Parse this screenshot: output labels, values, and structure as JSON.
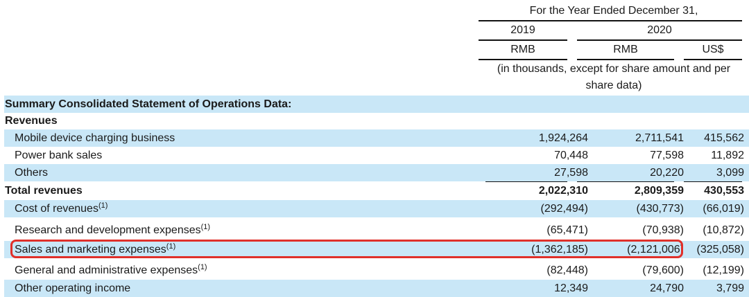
{
  "header": {
    "period": "For the Year Ended December 31,",
    "year_2019": "2019",
    "year_2020": "2020",
    "currency_2019": "RMB",
    "currency_2020": "RMB",
    "currency_usd": "US$",
    "units_line1": "(in thousands, except for share amount and per",
    "units_line2": "share data)"
  },
  "rows": [
    {
      "label": "Summary Consolidated Statement of Operations Data:",
      "sup": "",
      "v2019": "",
      "v2020": "",
      "vusd": ""
    },
    {
      "label": "Revenues",
      "sup": "",
      "v2019": "",
      "v2020": "",
      "vusd": ""
    },
    {
      "label": "Mobile device charging business",
      "sup": "",
      "v2019": "1,924,264",
      "v2020": "2,711,541",
      "vusd": "415,562"
    },
    {
      "label": "Power bank sales",
      "sup": "",
      "v2019": "70,448",
      "v2020": "77,598",
      "vusd": "11,892"
    },
    {
      "label": "Others",
      "sup": "",
      "v2019": "27,598",
      "v2020": "20,220",
      "vusd": "3,099"
    },
    {
      "label": "Total revenues",
      "sup": "",
      "v2019": "2,022,310",
      "v2020": "2,809,359",
      "vusd": "430,553"
    },
    {
      "label": "Cost of revenues",
      "sup": "(1)",
      "v2019": "(292,494)",
      "v2020": "(430,773)",
      "vusd": "(66,019)"
    },
    {
      "label": "Research and development expenses",
      "sup": "(1)",
      "v2019": "(65,471)",
      "v2020": "(70,938)",
      "vusd": "(10,872)"
    },
    {
      "label": "Sales and marketing expenses",
      "sup": "(1)",
      "v2019": "(1,362,185)",
      "v2020": "(2,121,006)",
      "vusd": "(325,058)"
    },
    {
      "label": "General and administrative expenses",
      "sup": "(1)",
      "v2019": "(82,448)",
      "v2020": "(79,600)",
      "vusd": "(12,199)"
    },
    {
      "label": "Other operating income",
      "sup": "",
      "v2019": "12,349",
      "v2020": "24,790",
      "vusd": "3,799"
    }
  ],
  "colors": {
    "row_shade": "#c9e7f7",
    "highlight_border": "#e0302a",
    "rule": "#111111",
    "text": "#1a1a1a"
  }
}
